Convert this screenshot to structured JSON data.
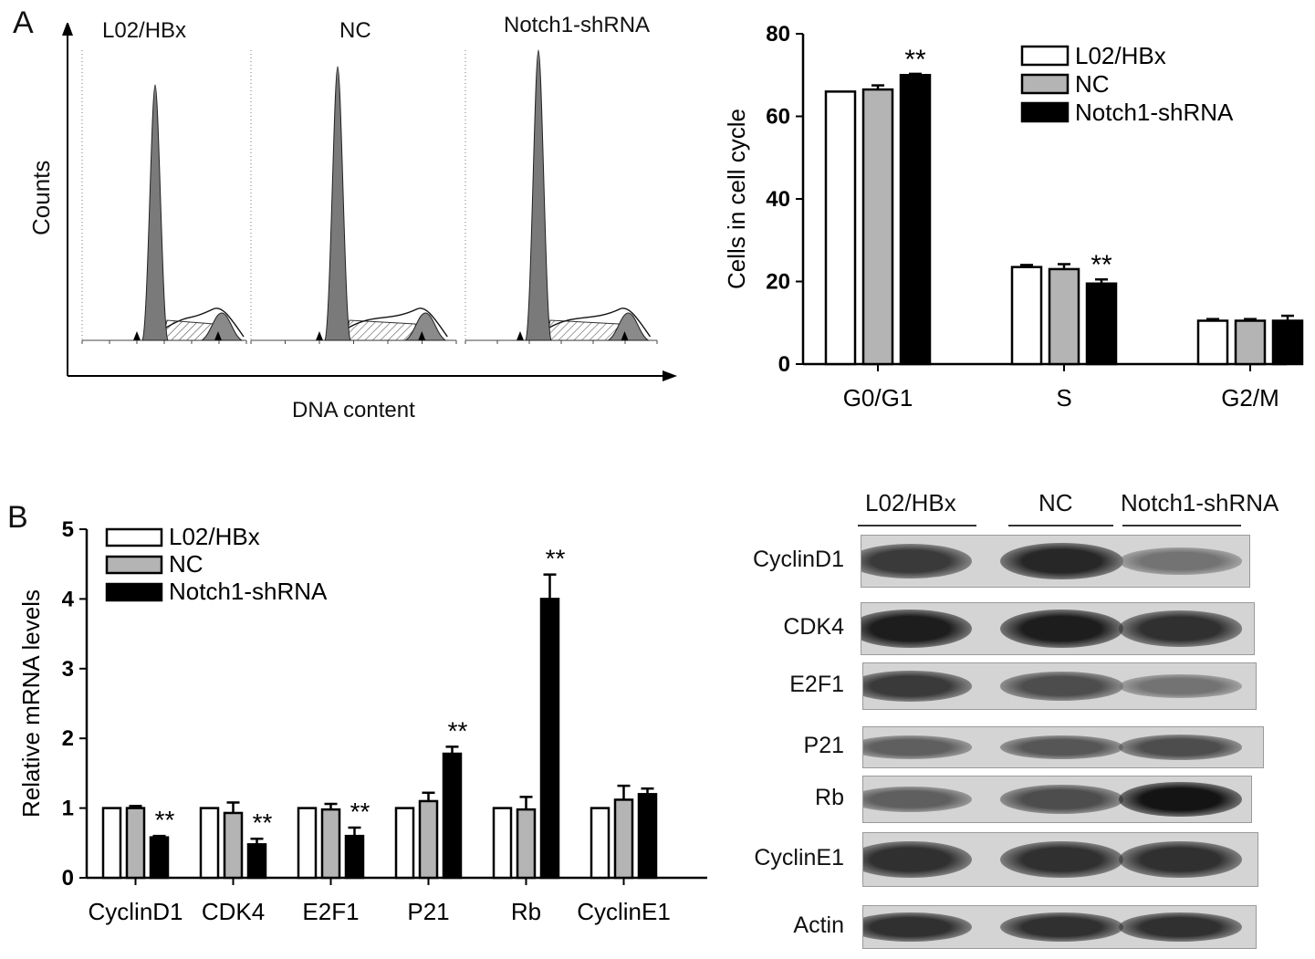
{
  "panelA": {
    "letter": "A",
    "flow": {
      "groups": [
        "L02/HBx",
        "NC",
        "Notch1-shRNA"
      ],
      "xlabel": "DNA content",
      "ylabel": "Counts"
    }
  },
  "panelB": {
    "letter": "B",
    "blot": {
      "lanes": [
        "L02/HBx",
        "NC",
        "Notch1-shRNA"
      ],
      "rows": [
        {
          "label": "CyclinD1",
          "intensity": [
            0.75,
            0.85,
            0.45
          ]
        },
        {
          "label": "CDK4",
          "intensity": [
            0.9,
            0.9,
            0.8
          ]
        },
        {
          "label": "E2F1",
          "intensity": [
            0.75,
            0.65,
            0.45
          ]
        },
        {
          "label": "P21",
          "intensity": [
            0.55,
            0.6,
            0.65
          ]
        },
        {
          "label": "Rb",
          "intensity": [
            0.55,
            0.65,
            0.95
          ]
        },
        {
          "label": "CyclinE1",
          "intensity": [
            0.8,
            0.8,
            0.8
          ]
        },
        {
          "label": "Actin",
          "intensity": [
            0.8,
            0.8,
            0.8
          ]
        }
      ]
    }
  },
  "chart_data": [
    {
      "type": "bar",
      "panel": "A",
      "ylabel": "Cells in cell cycle",
      "xlabel": "",
      "title": "",
      "categories": [
        "G0/G1",
        "S",
        "G2/M"
      ],
      "ylim": [
        0,
        80
      ],
      "yticks": [
        "0",
        "20",
        "40",
        "60",
        "80"
      ],
      "legend_position": "top-right",
      "series": [
        {
          "name": "L02/HBx",
          "values": [
            66,
            23.5,
            10.5
          ],
          "errors": [
            0,
            0.5,
            0.4
          ],
          "color": "#ffffff"
        },
        {
          "name": "NC",
          "values": [
            66.5,
            23,
            10.5
          ],
          "errors": [
            1,
            1.2,
            0.4
          ],
          "color": "#b4b4b4"
        },
        {
          "name": "Notch1-shRNA",
          "values": [
            70,
            19.5,
            10.5
          ],
          "errors": [
            0.3,
            1,
            1.2
          ],
          "color": "#000000"
        }
      ],
      "annotations": [
        {
          "category": "G0/G1",
          "series": "Notch1-shRNA",
          "text": "**"
        },
        {
          "category": "S",
          "series": "Notch1-shRNA",
          "text": "**"
        }
      ]
    },
    {
      "type": "bar",
      "panel": "B",
      "ylabel": "Relative mRNA levels",
      "xlabel": "",
      "title": "",
      "categories": [
        "CyclinD1",
        "CDK4",
        "E2F1",
        "P21",
        "Rb",
        "CyclinE1"
      ],
      "ylim": [
        0,
        5
      ],
      "yticks": [
        "0",
        "1",
        "2",
        "3",
        "4",
        "5"
      ],
      "legend_position": "top-left",
      "series": [
        {
          "name": "L02/HBx",
          "values": [
            1,
            1,
            1,
            1,
            1,
            1
          ],
          "errors": [
            0,
            0,
            0,
            0,
            0,
            0
          ],
          "color": "#ffffff"
        },
        {
          "name": "NC",
          "values": [
            1,
            0.93,
            0.98,
            1.1,
            0.98,
            1.12
          ],
          "errors": [
            0.03,
            0.15,
            0.08,
            0.12,
            0.18,
            0.2
          ],
          "color": "#b4b4b4"
        },
        {
          "name": "Notch1-shRNA",
          "values": [
            0.58,
            0.48,
            0.6,
            1.78,
            4,
            1.2
          ],
          "errors": [
            0.02,
            0.08,
            0.12,
            0.1,
            0.35,
            0.08
          ],
          "color": "#000000"
        }
      ],
      "annotations": [
        {
          "category": "CyclinD1",
          "series": "Notch1-shRNA",
          "text": "**"
        },
        {
          "category": "CDK4",
          "series": "Notch1-shRNA",
          "text": "**"
        },
        {
          "category": "E2F1",
          "series": "Notch1-shRNA",
          "text": "**"
        },
        {
          "category": "P21",
          "series": "Notch1-shRNA",
          "text": "**"
        },
        {
          "category": "Rb",
          "series": "Notch1-shRNA",
          "text": "**"
        }
      ]
    }
  ]
}
